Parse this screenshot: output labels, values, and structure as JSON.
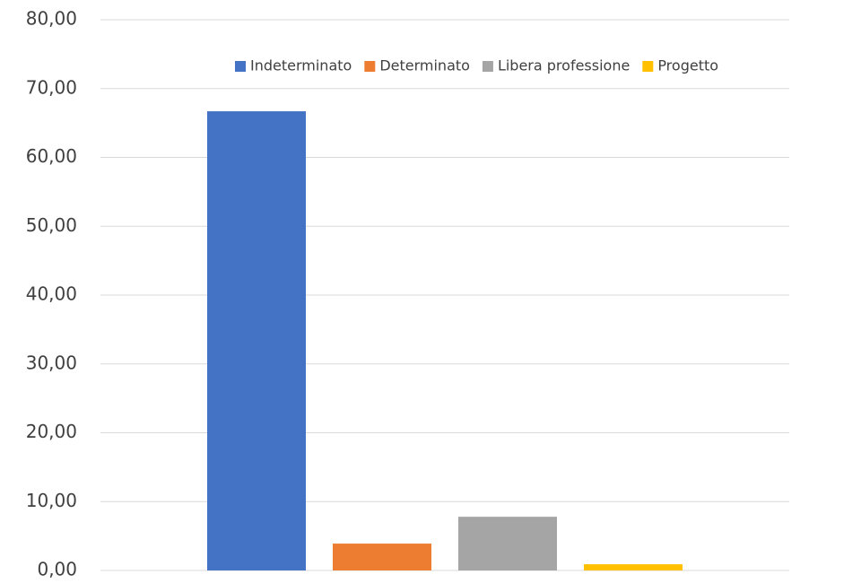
{
  "chart_data": {
    "type": "bar",
    "categories": [
      null
    ],
    "series": [
      {
        "name": "Indeterminato",
        "color": "#4472c4",
        "values": [
          66.7
        ]
      },
      {
        "name": "Determinato",
        "color": "#ed7d31",
        "values": [
          3.9
        ]
      },
      {
        "name": "Libera professione",
        "color": "#a5a5a5",
        "values": [
          7.8
        ]
      },
      {
        "name": "Progetto",
        "color": "#ffc000",
        "values": [
          0.9
        ]
      }
    ],
    "ylim": [
      0,
      80
    ],
    "yticks": [
      {
        "value": 0,
        "label": "0,00"
      },
      {
        "value": 10,
        "label": "10,00"
      },
      {
        "value": 20,
        "label": "20,00"
      },
      {
        "value": 30,
        "label": "30,00"
      },
      {
        "value": 40,
        "label": "40,00"
      },
      {
        "value": 50,
        "label": "50,00"
      },
      {
        "value": 60,
        "label": "60,00"
      },
      {
        "value": 70,
        "label": "70,00"
      },
      {
        "value": 80,
        "label": "80,00"
      }
    ],
    "grid": true,
    "legend": "top"
  }
}
